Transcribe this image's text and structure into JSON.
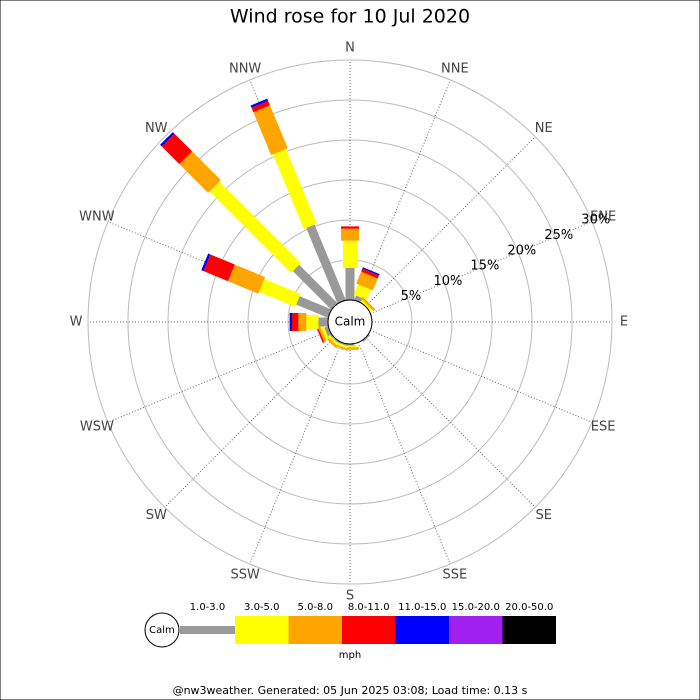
{
  "chart_data": {
    "type": "windrose",
    "title": "Wind rose for 10 Jul 2020",
    "directions": [
      "N",
      "NNE",
      "NE",
      "ENE",
      "E",
      "ESE",
      "SE",
      "SSE",
      "S",
      "SSW",
      "SW",
      "WSW",
      "W",
      "WNW",
      "NW",
      "NNW"
    ],
    "calm_label": "Calm",
    "unit_label": "mph",
    "rlim": [
      0,
      30
    ],
    "rticks": [
      {
        "value": 5,
        "label": "5%"
      },
      {
        "value": 10,
        "label": "10%"
      },
      {
        "value": 15,
        "label": "15%"
      },
      {
        "value": 20,
        "label": "20%"
      },
      {
        "value": 25,
        "label": "25%"
      },
      {
        "value": 30,
        "label": "30%"
      }
    ],
    "series": [
      {
        "name": "1.0-3.0",
        "color": "#999999",
        "values": [
          4.0,
          0.6,
          0,
          0,
          0,
          0,
          0.2,
          0,
          0.2,
          0.2,
          0.2,
          0.5,
          1.2,
          4.3,
          6.8,
          10.2
        ]
      },
      {
        "name": "3.0-5.0",
        "color": "#ffff00",
        "values": [
          3.4,
          1.4,
          0.3,
          0,
          0,
          0,
          0,
          0,
          0.2,
          0.3,
          0.3,
          0.4,
          1.5,
          4.9,
          14.4,
          10.1
        ]
      },
      {
        "name": "5.0-8.0",
        "color": "#ffa500",
        "values": [
          1.5,
          1.6,
          0.3,
          0,
          0,
          0,
          0,
          0,
          0.3,
          0.2,
          0.3,
          0.3,
          1.0,
          4.1,
          5.1,
          5.8
        ]
      },
      {
        "name": "8.0-11.0",
        "color": "#ff0000",
        "values": [
          0.3,
          0.4,
          0,
          0,
          0,
          0,
          0,
          0,
          0,
          0,
          0,
          0.2,
          0.8,
          3.3,
          3.1,
          0.6
        ]
      },
      {
        "name": "11.0-15.0",
        "color": "#0000ff",
        "values": [
          0,
          0.2,
          0,
          0,
          0,
          0,
          0,
          0,
          0,
          0,
          0,
          0,
          0.3,
          0.3,
          0.3,
          0.3
        ]
      },
      {
        "name": "15.0-20.0",
        "color": "#a020f0",
        "values": [
          0,
          0,
          0,
          0,
          0,
          0,
          0,
          0,
          0,
          0,
          0,
          0,
          0,
          0,
          0,
          0
        ]
      },
      {
        "name": "20.0-50.0",
        "color": "#000000",
        "values": [
          0,
          0,
          0,
          0,
          0,
          0,
          0,
          0,
          0,
          0,
          0,
          0,
          0,
          0,
          0,
          0
        ]
      }
    ],
    "footer": "@nw3weather. Generated: 05 Jun 2025 03:08; Load time: 0.13 s"
  }
}
